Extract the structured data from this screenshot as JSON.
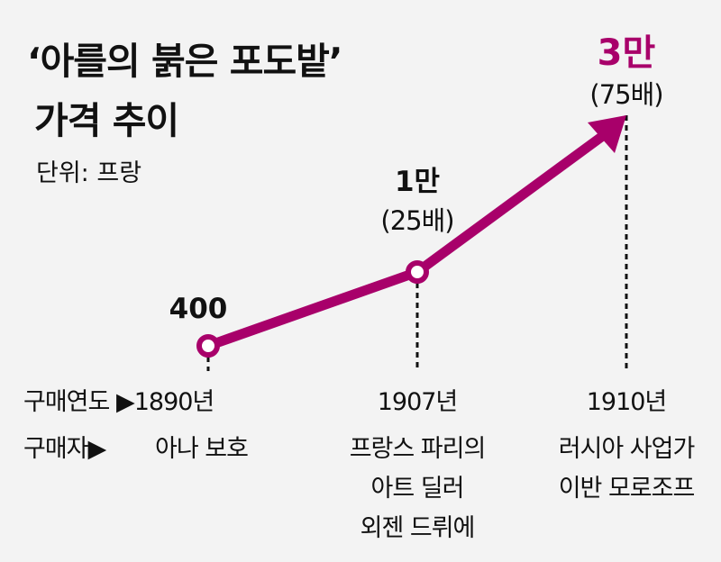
{
  "chart_data": {
    "type": "line",
    "title": [
      "‘아를의 붉은 포도밭’",
      "가격 추이"
    ],
    "unit": "단위: 프랑",
    "row_labels": {
      "year": "구매연도 ▶",
      "buyer": "구매자▶"
    },
    "categories": [
      "1890년",
      "1907년",
      "1910년"
    ],
    "values": [
      400,
      10000,
      30000
    ],
    "value_labels": [
      "400",
      "1만",
      "3만"
    ],
    "multiple_labels": [
      "",
      "(25배)",
      "(75배)"
    ],
    "buyers": [
      [
        "아나 보호"
      ],
      [
        "프랑스 파리의",
        "아트 딜러",
        "외젠 드뤼에"
      ],
      [
        "러시아 사업가",
        "이반 모로조프"
      ]
    ],
    "color": "#a8006a"
  }
}
